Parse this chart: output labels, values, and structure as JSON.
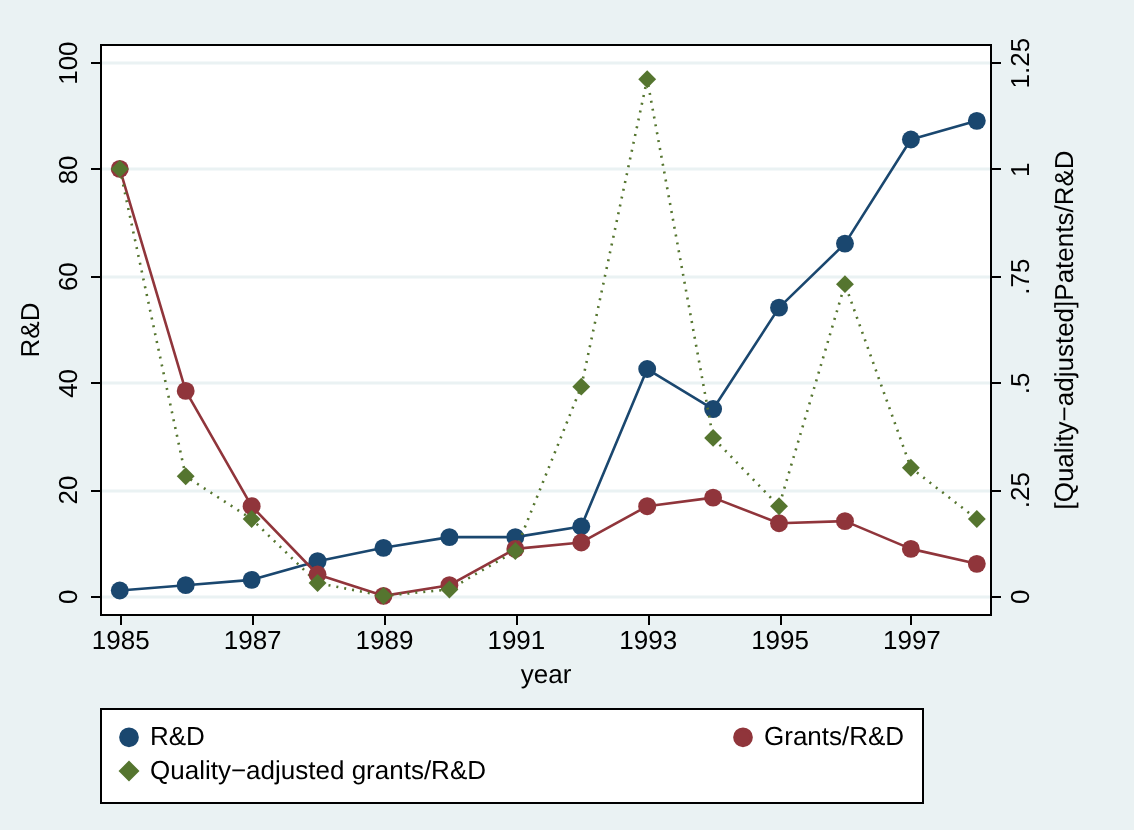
{
  "chart_data": {
    "type": "line",
    "xlabel": "year",
    "ylabel": "R&D",
    "y2label": "[Quality−adjusted]Patents/R&D",
    "x": [
      1985,
      1986,
      1987,
      1988,
      1989,
      1990,
      1991,
      1992,
      1993,
      1994,
      1995,
      1996,
      1997,
      1998
    ],
    "xlim": [
      1984.7,
      1998.2
    ],
    "xticks": [
      1985,
      1987,
      1989,
      1991,
      1993,
      1995,
      1997
    ],
    "ylim": [
      -3.4,
      103.4
    ],
    "yticks": [
      0,
      20,
      40,
      60,
      80,
      100
    ],
    "y2lim": [
      -0.0425,
      1.2925
    ],
    "y2ticks": [
      {
        "value": 0,
        "label": "0"
      },
      {
        "value": 0.25,
        "label": ".25"
      },
      {
        "value": 0.5,
        "label": ".5"
      },
      {
        "value": 0.75,
        "label": ".75"
      },
      {
        "value": 1,
        "label": "1"
      },
      {
        "value": 1.25,
        "label": "1.25"
      }
    ],
    "grid": "y",
    "legend": "bottom",
    "series": [
      {
        "name": "R&D",
        "color": "#1a476f",
        "marker": "circle",
        "line_style": "solid",
        "values": [
          1,
          2,
          3,
          6.5,
          9,
          11,
          11,
          13,
          42.5,
          35,
          54,
          66,
          85.5,
          89
        ]
      },
      {
        "name": "Grants/R&D",
        "color": "#90353b",
        "marker": "circle",
        "line_style": "solid",
        "axis": "y2",
        "values": [
          1.0,
          0.48,
          0.21,
          0.05,
          0,
          0.025,
          0.11,
          0.125,
          0.21,
          0.23,
          0.17,
          0.175,
          0.11,
          0.075
        ]
      },
      {
        "name": "Quality−adjusted grants/R&D",
        "color": "#55752f",
        "marker": "diamond",
        "line_style": "dotted",
        "axis": "y2",
        "values": [
          1.0,
          0.28,
          0.18,
          0.03,
          0,
          0.015,
          0.105,
          0.49,
          1.21,
          0.37,
          0.21,
          0.73,
          0.3,
          0.18
        ]
      }
    ]
  }
}
